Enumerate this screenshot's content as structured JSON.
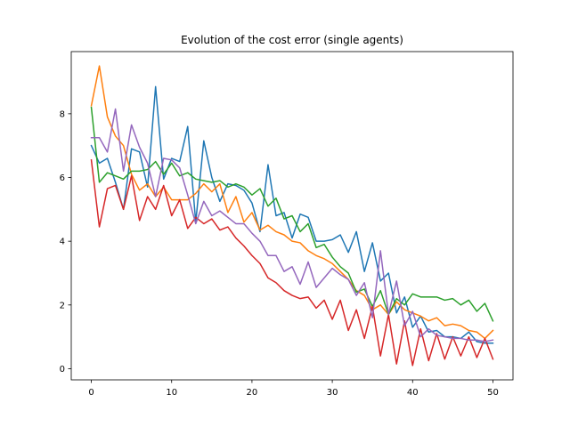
{
  "chart_data": {
    "type": "line",
    "title": "Evolution of the cost error (single agents)",
    "xlabel": "",
    "ylabel": "",
    "xlim": [
      -2.5,
      52.5
    ],
    "ylim": [
      -0.35,
      9.95
    ],
    "xticks": [
      0,
      10,
      20,
      30,
      40,
      50
    ],
    "yticks": [
      0,
      2,
      4,
      6,
      8
    ],
    "grid": false,
    "x": [
      0,
      1,
      2,
      3,
      4,
      5,
      6,
      7,
      8,
      9,
      10,
      11,
      12,
      13,
      14,
      15,
      16,
      17,
      18,
      19,
      20,
      21,
      22,
      23,
      24,
      25,
      26,
      27,
      28,
      29,
      30,
      31,
      32,
      33,
      34,
      35,
      36,
      37,
      38,
      39,
      40,
      41,
      42,
      43,
      44,
      45,
      46,
      47,
      48,
      49,
      50
    ],
    "series": [
      {
        "color": "#1f77b4",
        "values": [
          7.0,
          6.45,
          6.6,
          5.85,
          5.0,
          6.9,
          6.8,
          5.7,
          8.85,
          5.95,
          6.6,
          6.5,
          7.6,
          4.6,
          7.15,
          6.0,
          5.25,
          5.8,
          5.75,
          5.6,
          5.2,
          4.3,
          6.4,
          4.8,
          4.9,
          4.1,
          4.85,
          4.75,
          4.0,
          4.0,
          4.05,
          4.2,
          3.65,
          4.3,
          3.05,
          3.95,
          2.75,
          3.0,
          1.75,
          2.25,
          1.3,
          1.65,
          1.15,
          1.2,
          1.0,
          1.0,
          0.95,
          1.15,
          0.85,
          0.8,
          0.8
        ]
      },
      {
        "color": "#ff7f0e",
        "values": [
          8.25,
          9.5,
          7.9,
          7.3,
          7.0,
          6.1,
          5.6,
          5.8,
          5.4,
          5.7,
          5.3,
          5.3,
          5.3,
          5.5,
          5.8,
          5.55,
          5.8,
          4.9,
          5.4,
          4.6,
          4.9,
          4.35,
          4.5,
          4.3,
          4.2,
          4.0,
          3.95,
          3.7,
          3.55,
          3.45,
          3.3,
          3.05,
          2.8,
          2.45,
          2.3,
          1.85,
          2.0,
          1.7,
          2.1,
          1.85,
          1.75,
          1.65,
          1.5,
          1.6,
          1.35,
          1.4,
          1.35,
          1.2,
          1.15,
          0.95,
          1.2
        ]
      },
      {
        "color": "#2ca02c",
        "values": [
          8.2,
          5.85,
          6.15,
          6.05,
          5.95,
          6.2,
          6.2,
          6.25,
          6.5,
          6.1,
          6.45,
          6.05,
          6.15,
          5.95,
          5.9,
          5.85,
          5.9,
          5.7,
          5.8,
          5.7,
          5.45,
          5.65,
          5.1,
          5.35,
          4.7,
          4.8,
          4.3,
          4.55,
          3.8,
          3.9,
          3.5,
          3.2,
          3.0,
          2.4,
          2.5,
          1.95,
          2.45,
          1.7,
          2.2,
          2.0,
          2.35,
          2.25,
          2.25,
          2.25,
          2.15,
          2.2,
          2.0,
          2.15,
          1.8,
          2.05,
          1.5
        ]
      },
      {
        "color": "#d62728",
        "values": [
          6.55,
          4.45,
          5.65,
          5.75,
          5.0,
          6.05,
          4.65,
          5.4,
          5.0,
          5.75,
          4.8,
          5.3,
          4.4,
          4.75,
          4.55,
          4.7,
          4.35,
          4.45,
          4.1,
          3.85,
          3.55,
          3.3,
          2.85,
          2.7,
          2.45,
          2.3,
          2.2,
          2.25,
          1.9,
          2.15,
          1.55,
          2.15,
          1.2,
          1.85,
          0.95,
          1.95,
          0.4,
          1.7,
          0.15,
          1.5,
          0.1,
          1.25,
          0.25,
          1.1,
          0.3,
          1.0,
          0.4,
          1.0,
          0.35,
          0.95,
          0.3
        ]
      },
      {
        "color": "#9467bd",
        "values": [
          7.25,
          7.25,
          6.8,
          8.15,
          6.2,
          7.65,
          6.95,
          6.45,
          5.4,
          6.6,
          6.55,
          6.3,
          5.45,
          4.55,
          5.25,
          4.8,
          4.95,
          4.75,
          4.55,
          4.55,
          4.25,
          4.0,
          3.55,
          3.55,
          3.05,
          3.2,
          2.65,
          3.35,
          2.55,
          2.85,
          3.15,
          2.95,
          2.8,
          2.3,
          2.7,
          1.6,
          3.7,
          1.7,
          2.75,
          1.35,
          1.8,
          1.0,
          1.25,
          1.05,
          1.0,
          0.95,
          0.95,
          0.9,
          0.9,
          0.85,
          0.9
        ]
      }
    ]
  }
}
